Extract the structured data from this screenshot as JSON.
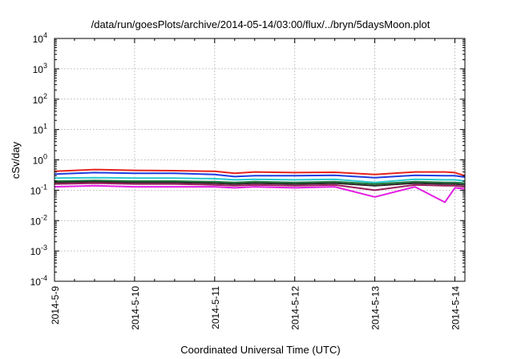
{
  "chart_data": {
    "type": "line",
    "title": "/data/run/goesPlots/archive/2014-05-14/03:00/flux/../bryn/5daysMoon.plot",
    "xlabel": "Coordinated Universal Time (UTC)",
    "ylabel": "cSv/day",
    "yscale": "log",
    "ylim": [
      0.0001,
      10000
    ],
    "y_ticks": [
      {
        "mantissa": "10",
        "exp": "-4",
        "value": 0.0001
      },
      {
        "mantissa": "10",
        "exp": "-3",
        "value": 0.001
      },
      {
        "mantissa": "10",
        "exp": "-2",
        "value": 0.01
      },
      {
        "mantissa": "10",
        "exp": "-1",
        "value": 0.1
      },
      {
        "mantissa": "10",
        "exp": "0",
        "value": 1
      },
      {
        "mantissa": "10",
        "exp": "1",
        "value": 10
      },
      {
        "mantissa": "10",
        "exp": "2",
        "value": 100
      },
      {
        "mantissa": "10",
        "exp": "3",
        "value": 1000
      },
      {
        "mantissa": "10",
        "exp": "4",
        "value": 10000
      }
    ],
    "x_tick_labels": [
      "2014-5-9",
      "2014-5-10",
      "2014-5-11",
      "2014-5-12",
      "2014-5-13",
      "2014-5-14"
    ],
    "xlim": [
      "2014-05-09T00:00",
      "2014-05-14T03:00"
    ],
    "grid": true,
    "x": [
      "2014-05-09T00:00",
      "2014-05-09T12:00",
      "2014-05-10T00:00",
      "2014-05-10T12:00",
      "2014-05-11T00:00",
      "2014-05-11T06:00",
      "2014-05-11T12:00",
      "2014-05-12T00:00",
      "2014-05-12T12:00",
      "2014-05-13T00:00",
      "2014-05-13T12:00",
      "2014-05-13T21:00",
      "2014-05-14T00:00",
      "2014-05-14T03:00"
    ],
    "series": [
      {
        "color": "#e8221c",
        "values": [
          0.42,
          0.48,
          0.45,
          0.44,
          0.42,
          0.36,
          0.4,
          0.38,
          0.39,
          0.33,
          0.4,
          0.4,
          0.38,
          0.3
        ]
      },
      {
        "color": "#1f3de0",
        "values": [
          0.34,
          0.38,
          0.36,
          0.36,
          0.33,
          0.28,
          0.3,
          0.3,
          0.31,
          0.26,
          0.31,
          0.3,
          0.3,
          0.27
        ]
      },
      {
        "color": "#29c9cf",
        "values": [
          0.25,
          0.26,
          0.25,
          0.25,
          0.24,
          0.22,
          0.23,
          0.22,
          0.23,
          0.18,
          0.23,
          0.22,
          0.22,
          0.2
        ]
      },
      {
        "color": "#1d7a3a",
        "values": [
          0.2,
          0.21,
          0.2,
          0.2,
          0.19,
          0.18,
          0.19,
          0.18,
          0.19,
          0.16,
          0.19,
          0.18,
          0.18,
          0.17
        ]
      },
      {
        "color": "#2b2b2b",
        "values": [
          0.18,
          0.19,
          0.18,
          0.18,
          0.17,
          0.16,
          0.17,
          0.16,
          0.17,
          0.14,
          0.17,
          0.16,
          0.16,
          0.15
        ]
      },
      {
        "color": "#9b1f5e",
        "values": [
          0.16,
          0.17,
          0.16,
          0.16,
          0.15,
          0.14,
          0.15,
          0.14,
          0.15,
          0.1,
          0.15,
          0.14,
          0.14,
          0.13
        ]
      },
      {
        "color": "#e41de3",
        "values": [
          0.13,
          0.14,
          0.13,
          0.13,
          0.13,
          0.12,
          0.13,
          0.12,
          0.13,
          0.06,
          0.13,
          0.04,
          0.12,
          0.11
        ]
      }
    ]
  }
}
